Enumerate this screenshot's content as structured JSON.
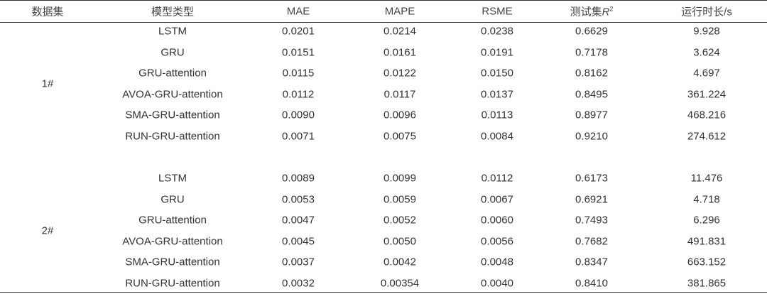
{
  "header": {
    "dataset": "数据集",
    "model": "模型类型",
    "mae": "MAE",
    "mape": "MAPE",
    "rsme": "RSME",
    "r2": {
      "text": "测试集",
      "var": "R",
      "sup": "2"
    },
    "time": "运行时长/s"
  },
  "groups": [
    {
      "dataset": "1#",
      "rows": [
        [
          "LSTM",
          "0.0201",
          "0.0214",
          "0.0238",
          "0.6629",
          "9.928"
        ],
        [
          "GRU",
          "0.0151",
          "0.0161",
          "0.0191",
          "0.7178",
          "3.624"
        ],
        [
          "GRU-attention",
          "0.0115",
          "0.0122",
          "0.0150",
          "0.8162",
          "4.697"
        ],
        [
          "AVOA-GRU-attention",
          "0.0112",
          "0.0117",
          "0.0137",
          "0.8495",
          "361.224"
        ],
        [
          "SMA-GRU-attention",
          "0.0090",
          "0.0096",
          "0.0113",
          "0.8977",
          "468.216"
        ],
        [
          "RUN-GRU-attention",
          "0.0071",
          "0.0075",
          "0.0084",
          "0.9210",
          "274.612"
        ]
      ]
    },
    {
      "dataset": "2#",
      "rows": [
        [
          "LSTM",
          "0.0089",
          "0.0099",
          "0.0112",
          "0.6173",
          "11.476"
        ],
        [
          "GRU",
          "0.0053",
          "0.0059",
          "0.0067",
          "0.6921",
          "4.718"
        ],
        [
          "GRU-attention",
          "0.0047",
          "0.0052",
          "0.0060",
          "0.7493",
          "6.296"
        ],
        [
          "AVOA-GRU-attention",
          "0.0045",
          "0.0050",
          "0.0056",
          "0.7682",
          "491.831"
        ],
        [
          "SMA-GRU-attention",
          "0.0037",
          "0.0042",
          "0.0048",
          "0.8347",
          "663.152"
        ],
        [
          "RUN-GRU-attention",
          "0.0032",
          "0.00354",
          "0.0040",
          "0.8410",
          "381.865"
        ]
      ]
    }
  ]
}
